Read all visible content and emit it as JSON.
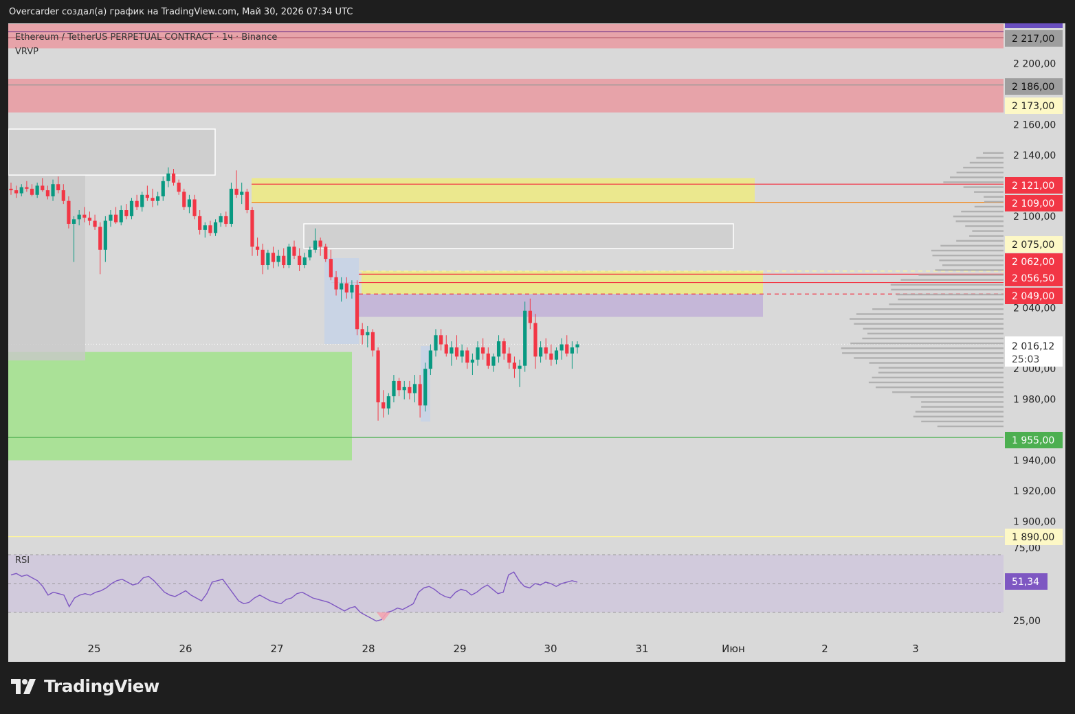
{
  "header": {
    "attribution": "Overcarder создал(а) график на TradingView.com, Май 30, 2026 07:34 UTC"
  },
  "legend": {
    "symbol": "Ethereum / TetherUS PERPETUAL CONTRACT · 1ч · Binance",
    "indicator": "VRVP",
    "rsi_label": "RSI"
  },
  "brand": {
    "name": "TradingView"
  },
  "colors": {
    "up": "#089981",
    "down": "#f23645",
    "resistance_zone": "#e8a0a6",
    "supply_zone": "#ece98a",
    "demand_zone": "#a8e193",
    "fvg_zone": "#c4b5d8",
    "rsi_line": "#7e57c2",
    "rsi_band": "#cfc8dc",
    "price_label_red": "#f23645",
    "price_label_yellow": "#fdf8c6",
    "price_label_green": "#4caf50",
    "price_label_gray": "#9e9e9e",
    "rsi_label_bg": "#7e57c2"
  },
  "chart_data": {
    "type": "candlestick",
    "timeframe": "1ч",
    "exchange": "Binance",
    "x_ticks": [
      "25",
      "26",
      "27",
      "28",
      "29",
      "30",
      "31",
      "Июн",
      "2",
      "3"
    ],
    "y_ticks": [
      "2 200,00",
      "2 160,00",
      "2 140,00",
      "2 100,00",
      "2 040,00",
      "2 000,00",
      "1 980,00",
      "1 940,00",
      "1 920,00",
      "1 900,00"
    ],
    "price_labels": [
      {
        "text": "2 217,00",
        "kind": "gray"
      },
      {
        "text": "2 186,00",
        "kind": "gray"
      },
      {
        "text": "2 173,00",
        "kind": "yellow"
      },
      {
        "text": "2 121,00",
        "kind": "red"
      },
      {
        "text": "2 109,00",
        "kind": "red"
      },
      {
        "text": "2 075,00",
        "kind": "yellow"
      },
      {
        "text": "2 062,00",
        "kind": "red"
      },
      {
        "text": "2 056,50",
        "kind": "red"
      },
      {
        "text": "2 049,00",
        "kind": "red"
      },
      {
        "text": "1 955,00",
        "kind": "green"
      },
      {
        "text": "1 890,00",
        "kind": "yellow"
      }
    ],
    "current_price": {
      "text": "2 016,12",
      "countdown": "25:03"
    },
    "rsi": {
      "value_label": "51,34",
      "y_ticks": [
        "75,00",
        "25,00"
      ],
      "upper": 70,
      "lower": 30,
      "mid": 50
    },
    "zones": [
      {
        "kind": "resistance",
        "from": 2210,
        "to": 2226
      },
      {
        "kind": "resistance",
        "from": 2168,
        "to": 2190
      },
      {
        "kind": "supply",
        "from": 2109,
        "to": 2125
      },
      {
        "kind": "supply",
        "from": 2049,
        "to": 2064
      },
      {
        "kind": "fvg",
        "from": 2034,
        "to": 2049
      },
      {
        "kind": "demand",
        "from": 1940,
        "to": 2011
      }
    ],
    "candles_ohlc": [
      [
        2118,
        2122,
        2114,
        2117
      ],
      [
        2117,
        2120,
        2112,
        2115
      ],
      [
        2115,
        2121,
        2113,
        2119
      ],
      [
        2119,
        2123,
        2116,
        2118
      ],
      [
        2118,
        2121,
        2113,
        2114
      ],
      [
        2114,
        2122,
        2112,
        2120
      ],
      [
        2120,
        2125,
        2116,
        2117
      ],
      [
        2117,
        2120,
        2111,
        2113
      ],
      [
        2113,
        2124,
        2110,
        2121
      ],
      [
        2121,
        2126,
        2115,
        2117
      ],
      [
        2117,
        2121,
        2108,
        2110
      ],
      [
        2110,
        2113,
        2092,
        2095
      ],
      [
        2095,
        2100,
        2070,
        2098
      ],
      [
        2098,
        2104,
        2094,
        2101
      ],
      [
        2101,
        2106,
        2096,
        2099
      ],
      [
        2099,
        2103,
        2094,
        2097
      ],
      [
        2097,
        2101,
        2091,
        2093
      ],
      [
        2093,
        2096,
        2062,
        2078
      ],
      [
        2078,
        2100,
        2070,
        2097
      ],
      [
        2097,
        2104,
        2093,
        2101
      ],
      [
        2101,
        2106,
        2095,
        2096
      ],
      [
        2096,
        2107,
        2094,
        2104
      ],
      [
        2104,
        2108,
        2098,
        2100
      ],
      [
        2100,
        2112,
        2098,
        2110
      ],
      [
        2110,
        2114,
        2104,
        2106
      ],
      [
        2106,
        2116,
        2103,
        2114
      ],
      [
        2114,
        2120,
        2110,
        2112
      ],
      [
        2112,
        2118,
        2106,
        2110
      ],
      [
        2110,
        2116,
        2107,
        2113
      ],
      [
        2113,
        2126,
        2110,
        2123
      ],
      [
        2123,
        2132,
        2119,
        2128
      ],
      [
        2128,
        2131,
        2120,
        2122
      ],
      [
        2122,
        2124,
        2114,
        2116
      ],
      [
        2116,
        2118,
        2104,
        2106
      ],
      [
        2106,
        2114,
        2102,
        2111
      ],
      [
        2111,
        2114,
        2098,
        2100
      ],
      [
        2100,
        2104,
        2088,
        2091
      ],
      [
        2091,
        2096,
        2086,
        2094
      ],
      [
        2094,
        2097,
        2087,
        2089
      ],
      [
        2089,
        2098,
        2087,
        2096
      ],
      [
        2096,
        2102,
        2093,
        2100
      ],
      [
        2100,
        2103,
        2093,
        2095
      ],
      [
        2095,
        2122,
        2093,
        2118
      ],
      [
        2118,
        2130,
        2112,
        2114
      ],
      [
        2114,
        2122,
        2108,
        2116
      ],
      [
        2116,
        2118,
        2102,
        2104
      ],
      [
        2104,
        2106,
        2074,
        2080
      ],
      [
        2080,
        2086,
        2074,
        2078
      ],
      [
        2078,
        2082,
        2062,
        2068
      ],
      [
        2068,
        2078,
        2065,
        2076
      ],
      [
        2076,
        2080,
        2066,
        2070
      ],
      [
        2070,
        2078,
        2067,
        2074
      ],
      [
        2074,
        2079,
        2066,
        2068
      ],
      [
        2068,
        2082,
        2066,
        2080
      ],
      [
        2080,
        2084,
        2072,
        2074
      ],
      [
        2074,
        2079,
        2064,
        2068
      ],
      [
        2068,
        2076,
        2066,
        2073
      ],
      [
        2073,
        2080,
        2071,
        2078
      ],
      [
        2078,
        2092,
        2076,
        2084
      ],
      [
        2084,
        2086,
        2074,
        2080
      ],
      [
        2080,
        2082,
        2070,
        2072
      ],
      [
        2072,
        2078,
        2058,
        2060
      ],
      [
        2060,
        2064,
        2048,
        2052
      ],
      [
        2052,
        2060,
        2044,
        2056
      ],
      [
        2056,
        2060,
        2046,
        2050
      ],
      [
        2050,
        2058,
        2046,
        2055
      ],
      [
        2055,
        2058,
        2022,
        2026
      ],
      [
        2026,
        2030,
        2016,
        2022
      ],
      [
        2022,
        2028,
        2014,
        2024
      ],
      [
        2024,
        2026,
        2008,
        2012
      ],
      [
        2012,
        2014,
        1966,
        1978
      ],
      [
        1978,
        1986,
        1968,
        1974
      ],
      [
        1974,
        1984,
        1970,
        1982
      ],
      [
        1982,
        1996,
        1978,
        1992
      ],
      [
        1992,
        1994,
        1982,
        1986
      ],
      [
        1986,
        1992,
        1980,
        1988
      ],
      [
        1988,
        1992,
        1980,
        1984
      ],
      [
        1984,
        1996,
        1978,
        1990
      ],
      [
        1990,
        1996,
        1968,
        1976
      ],
      [
        1976,
        2004,
        1972,
        2000
      ],
      [
        2000,
        2016,
        1996,
        2012
      ],
      [
        2012,
        2026,
        2008,
        2022
      ],
      [
        2022,
        2026,
        2012,
        2016
      ],
      [
        2016,
        2022,
        2008,
        2010
      ],
      [
        2010,
        2018,
        2002,
        2014
      ],
      [
        2014,
        2022,
        2006,
        2008
      ],
      [
        2008,
        2016,
        2004,
        2012
      ],
      [
        2012,
        2014,
        2000,
        2004
      ],
      [
        2004,
        2010,
        1996,
        2006
      ],
      [
        2006,
        2018,
        2002,
        2014
      ],
      [
        2014,
        2020,
        2006,
        2010
      ],
      [
        2010,
        2014,
        2000,
        2002
      ],
      [
        2002,
        2010,
        1998,
        2008
      ],
      [
        2008,
        2022,
        2004,
        2018
      ],
      [
        2018,
        2020,
        2006,
        2010
      ],
      [
        2010,
        2014,
        2000,
        2004
      ],
      [
        2004,
        2008,
        1994,
        2000
      ],
      [
        2000,
        2006,
        1988,
        2002
      ],
      [
        2002,
        2044,
        1998,
        2038
      ],
      [
        2038,
        2046,
        2026,
        2030
      ],
      [
        2030,
        2036,
        2000,
        2008
      ],
      [
        2008,
        2018,
        2004,
        2014
      ],
      [
        2014,
        2020,
        2006,
        2010
      ],
      [
        2010,
        2016,
        2002,
        2006
      ],
      [
        2006,
        2014,
        2003,
        2012
      ],
      [
        2012,
        2020,
        2006,
        2016
      ],
      [
        2016,
        2022,
        2008,
        2010
      ],
      [
        2010,
        2018,
        2000,
        2014
      ],
      [
        2014,
        2018,
        2010,
        2016
      ]
    ],
    "rsi_values": [
      56,
      57,
      55,
      56,
      54,
      52,
      48,
      42,
      44,
      43,
      42,
      34,
      40,
      42,
      43,
      42,
      44,
      45,
      47,
      50,
      52,
      53,
      51,
      49,
      50,
      54,
      55,
      52,
      48,
      44,
      42,
      41,
      43,
      45,
      42,
      40,
      38,
      43,
      51,
      52,
      53,
      48,
      43,
      38,
      36,
      37,
      40,
      42,
      40,
      38,
      37,
      36,
      39,
      40,
      43,
      44,
      42,
      40,
      39,
      38,
      37,
      35,
      33,
      31,
      33,
      34,
      30,
      28,
      26,
      24,
      25,
      30,
      31,
      33,
      32,
      34,
      36,
      44,
      47,
      48,
      46,
      43,
      41,
      40,
      44,
      46,
      45,
      42,
      44,
      47,
      49,
      46,
      43,
      44,
      56,
      58,
      52,
      48,
      47,
      50,
      49,
      51,
      50,
      48,
      50,
      51,
      52,
      51
    ]
  }
}
